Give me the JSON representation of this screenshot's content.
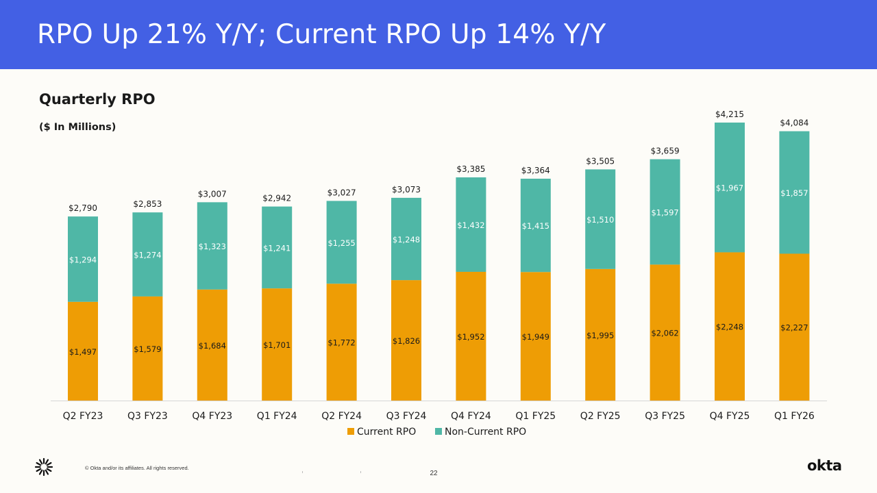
{
  "header": {
    "title": "RPO Up 21% Y/Y; Current RPO Up 14% Y/Y"
  },
  "chart_data": {
    "type": "bar",
    "stacked": true,
    "title": "Quarterly RPO",
    "subtitle": "($ In Millions)",
    "categories": [
      "Q2 FY23",
      "Q3 FY23",
      "Q4 FY23",
      "Q1 FY24",
      "Q2 FY24",
      "Q3 FY24",
      "Q4 FY24",
      "Q1 FY25",
      "Q2 FY25",
      "Q3 FY25",
      "Q4 FY25",
      "Q1 FY26"
    ],
    "series": [
      {
        "name": "Current RPO",
        "color": "#ee9d05",
        "values": [
          1497,
          1579,
          1684,
          1701,
          1772,
          1826,
          1952,
          1949,
          1995,
          2062,
          2248,
          2227
        ],
        "labels": [
          "$1,497",
          "$1,579",
          "$1,684",
          "$1,701",
          "$1,772",
          "$1,826",
          "$1,952",
          "$1,949",
          "$1,995",
          "$2,062",
          "$2,248",
          "$2,227"
        ]
      },
      {
        "name": "Non-Current RPO",
        "color": "#4fb7a6",
        "values": [
          1294,
          1274,
          1323,
          1241,
          1255,
          1248,
          1432,
          1415,
          1510,
          1597,
          1967,
          1857
        ],
        "labels": [
          "$1,294",
          "$1,274",
          "$1,323",
          "$1,241",
          "$1,255",
          "$1,248",
          "$1,432",
          "$1,415",
          "$1,510",
          "$1,597",
          "$1,967",
          "$1,857"
        ]
      }
    ],
    "totals": [
      2790,
      2853,
      3007,
      2942,
      3027,
      3073,
      3385,
      3364,
      3505,
      3659,
      4215,
      4084
    ],
    "total_labels": [
      "$2,790",
      "$2,853",
      "$3,007",
      "$2,942",
      "$3,027",
      "$3,073",
      "$3,385",
      "$3,364",
      "$3,505",
      "$3,659",
      "$4,215",
      "$4,084"
    ],
    "ylim": [
      0,
      4215
    ],
    "legend_position": "bottom-center",
    "grid": false
  },
  "footer": {
    "copyright": "© Okta and/or its affiliates. All rights reserved.",
    "page_number": "22",
    "brand": "okta"
  }
}
